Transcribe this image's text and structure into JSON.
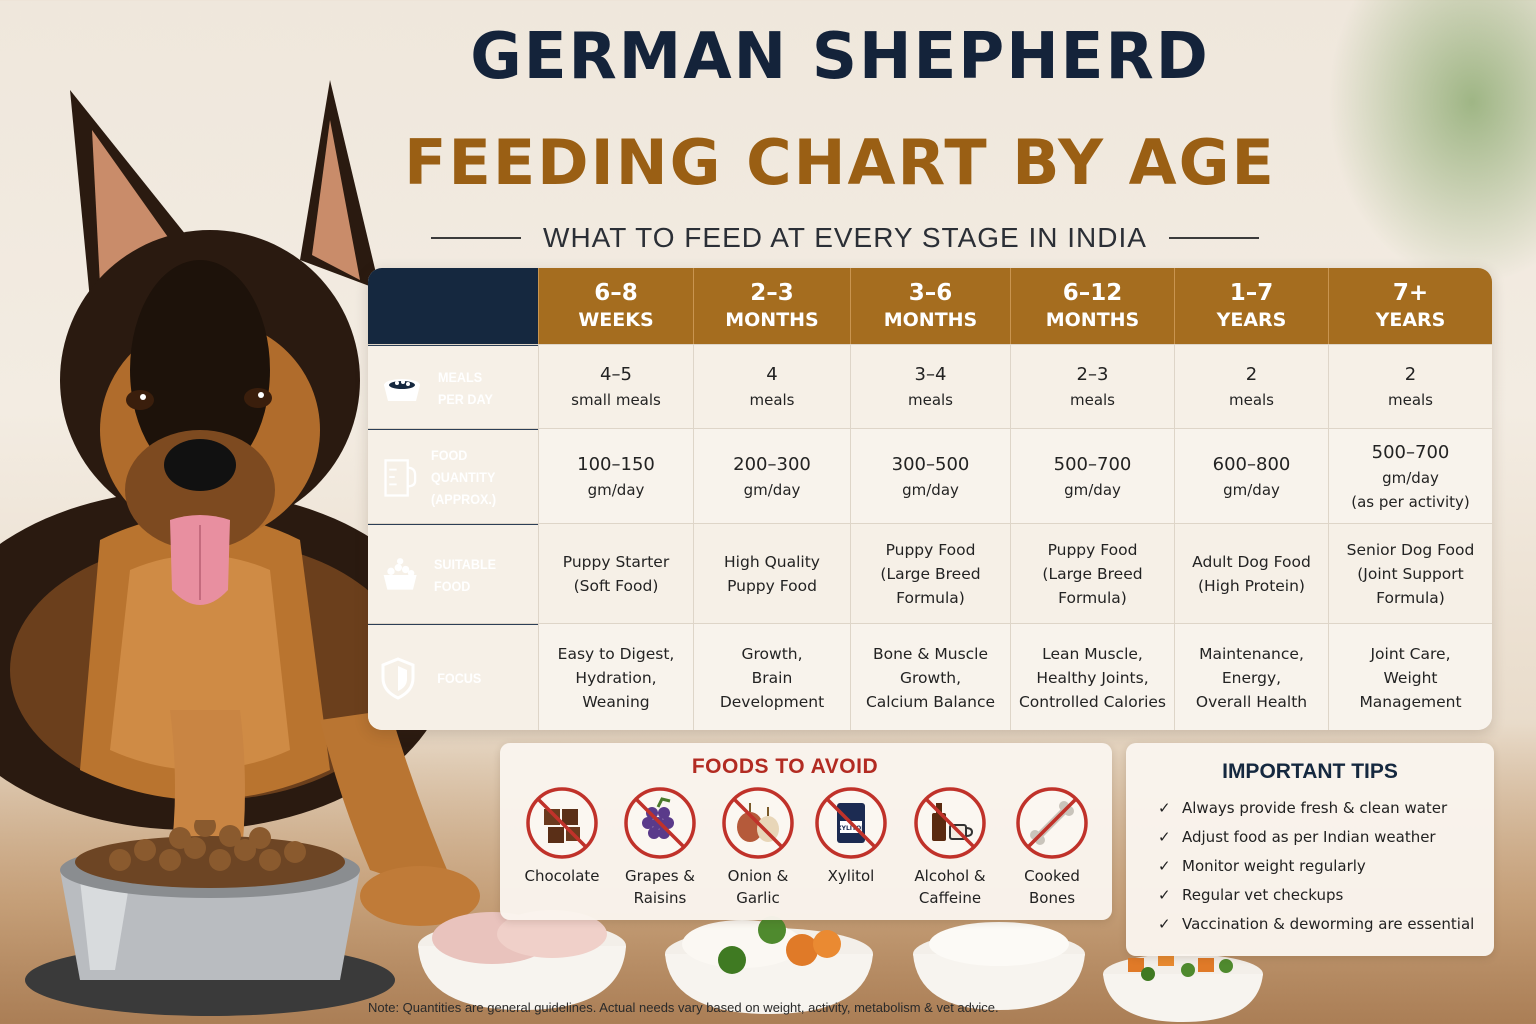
{
  "title": {
    "line1": "GERMAN SHEPHERD",
    "line2": "FEEDING CHART BY AGE",
    "subtitle": "WHAT TO FEED AT EVERY STAGE IN INDIA"
  },
  "colors": {
    "navy": "#15283f",
    "gold": "#a56d1f",
    "title_gold": "#9a5f14",
    "avoid_red": "#b22b22"
  },
  "table": {
    "ages": [
      {
        "top": "6–8",
        "bottom": "WEEKS"
      },
      {
        "top": "2–3",
        "bottom": "MONTHS"
      },
      {
        "top": "3–6",
        "bottom": "MONTHS"
      },
      {
        "top": "6–12",
        "bottom": "MONTHS"
      },
      {
        "top": "1–7",
        "bottom": "YEARS"
      },
      {
        "top": "7+",
        "bottom": "YEARS"
      }
    ],
    "rows": [
      {
        "icon": "food-bowl-icon",
        "label_line1": "MEALS",
        "label_line2": "PER DAY",
        "cells": [
          {
            "l1": "4–5",
            "l2": "small meals"
          },
          {
            "l1": "4",
            "l2": "meals"
          },
          {
            "l1": "3–4",
            "l2": "meals"
          },
          {
            "l1": "2–3",
            "l2": "meals"
          },
          {
            "l1": "2",
            "l2": "meals"
          },
          {
            "l1": "2",
            "l2": "meals"
          }
        ]
      },
      {
        "icon": "measuring-cup-icon",
        "label_line1": "FOOD QUANTITY",
        "label_line2": "(APPROX.)",
        "cells": [
          {
            "l1": "100–150",
            "l2": "gm/day"
          },
          {
            "l1": "200–300",
            "l2": "gm/day"
          },
          {
            "l1": "300–500",
            "l2": "gm/day"
          },
          {
            "l1": "500–700",
            "l2": "gm/day"
          },
          {
            "l1": "600–800",
            "l2": "gm/day"
          },
          {
            "l1": "500–700",
            "l2": "gm/day",
            "l3": "(as per activity)"
          }
        ]
      },
      {
        "icon": "kibble-bowl-icon",
        "label_line1": "SUITABLE FOOD",
        "label_line2": "",
        "cells": [
          {
            "l1": "Puppy Starter",
            "l2": "(Soft Food)"
          },
          {
            "l1": "High Quality",
            "l2": "Puppy Food"
          },
          {
            "l1": "Puppy Food",
            "l2": "(Large Breed",
            "l3": "Formula)"
          },
          {
            "l1": "Puppy Food",
            "l2": "(Large Breed",
            "l3": "Formula)"
          },
          {
            "l1": "Adult Dog Food",
            "l2": "(High Protein)"
          },
          {
            "l1": "Senior Dog Food",
            "l2": "(Joint Support",
            "l3": "Formula)"
          }
        ]
      },
      {
        "icon": "shield-icon",
        "label_line1": "FOCUS",
        "label_line2": "",
        "cells": [
          {
            "l1": "Easy to Digest,",
            "l2": "Hydration,",
            "l3": "Weaning"
          },
          {
            "l1": "Growth,",
            "l2": "Brain",
            "l3": "Development"
          },
          {
            "l1": "Bone & Muscle",
            "l2": "Growth,",
            "l3": "Calcium Balance"
          },
          {
            "l1": "Lean Muscle,",
            "l2": "Healthy Joints,",
            "l3": "Controlled Calories"
          },
          {
            "l1": "Maintenance,",
            "l2": "Energy,",
            "l3": "Overall Health"
          },
          {
            "l1": "Joint Care,",
            "l2": "Weight",
            "l3": "Management"
          }
        ]
      }
    ]
  },
  "avoid": {
    "title": "FOODS TO AVOID",
    "items": [
      {
        "icon": "chocolate-icon",
        "l1": "Chocolate",
        "l2": ""
      },
      {
        "icon": "grapes-icon",
        "l1": "Grapes &",
        "l2": "Raisins"
      },
      {
        "icon": "onion-garlic-icon",
        "l1": "Onion &",
        "l2": "Garlic"
      },
      {
        "icon": "xylitol-icon",
        "l1": "Xylitol",
        "l2": "",
        "package_text": "XYLITOL"
      },
      {
        "icon": "alcohol-caffeine-icon",
        "l1": "Alcohol &",
        "l2": "Caffeine"
      },
      {
        "icon": "bone-icon",
        "l1": "Cooked",
        "l2": "Bones"
      }
    ]
  },
  "tips": {
    "title": "IMPORTANT TIPS",
    "items": [
      "Always provide fresh & clean water",
      "Adjust food as per Indian weather",
      "Monitor weight regularly",
      "Regular vet checkups",
      "Vaccination & deworming are essential"
    ]
  },
  "note": "Note: Quantities are general guidelines. Actual needs vary based on weight, activity, metabolism & vet advice."
}
